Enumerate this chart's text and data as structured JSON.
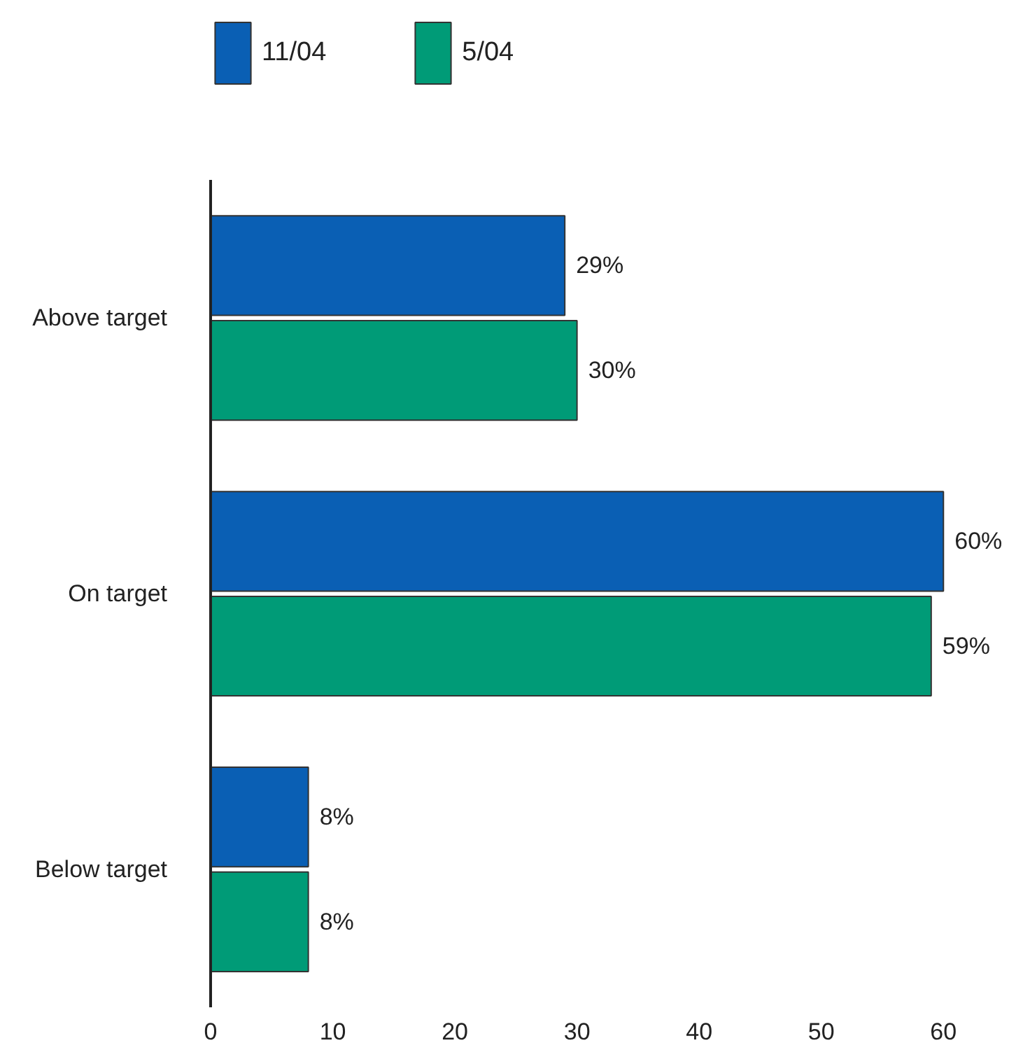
{
  "chart_data": {
    "type": "bar",
    "orientation": "horizontal",
    "categories": [
      "Above target",
      "On target",
      "Below target"
    ],
    "series": [
      {
        "name": "11/04",
        "color": "#0a5fb4",
        "values": [
          29,
          60,
          8
        ],
        "value_labels": [
          "29%",
          "60%",
          "8%"
        ]
      },
      {
        "name": "5/04",
        "color": "#009b77",
        "values": [
          30,
          59,
          8
        ],
        "value_labels": [
          "30%",
          "59%",
          "8%"
        ]
      }
    ],
    "xlim": [
      0,
      60
    ],
    "xticks": [
      0,
      10,
      20,
      30,
      40,
      50,
      60
    ],
    "grid": false,
    "legend": "top"
  }
}
